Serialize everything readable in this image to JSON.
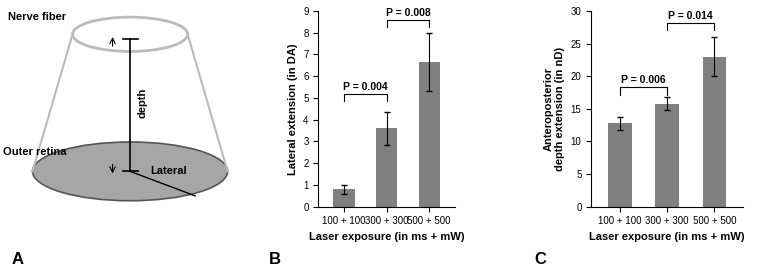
{
  "diagram": {
    "panel_label": "A",
    "top_label": "Nerve fiber",
    "bottom_label": "Outer retina",
    "depth_label": "depth",
    "lateral_label": "Lateral"
  },
  "chart_data": [
    {
      "panel_label": "B",
      "type": "bar",
      "categories": [
        "100 + 100",
        "300 + 300",
        "500 + 500"
      ],
      "values": [
        0.8,
        3.6,
        6.65
      ],
      "errors": [
        0.2,
        0.75,
        1.35
      ],
      "color": "#808080",
      "x_label": "Laser exposure (in ms + mW)",
      "y_label": "Lateral extension (in DA)",
      "ylim": [
        0,
        9
      ],
      "yticks": [
        0,
        1,
        2,
        3,
        4,
        5,
        6,
        7,
        8,
        9
      ],
      "grid": false,
      "annotations": [
        {
          "text": "P = 0.004",
          "between": [
            "100 + 100",
            "300 + 300"
          ],
          "y": 5.2
        },
        {
          "text": "P = 0.008",
          "between": [
            "300 + 300",
            "500 + 500"
          ],
          "y": 8.6
        }
      ]
    },
    {
      "panel_label": "C",
      "type": "bar",
      "categories": [
        "100 + 100",
        "300 + 300",
        "500 + 500"
      ],
      "values": [
        12.8,
        15.8,
        23.0
      ],
      "errors": [
        1.0,
        1.0,
        3.0
      ],
      "color": "#808080",
      "x_label": "Laser exposure (in ms + mW)",
      "y_label": "Anteroposterior\ndepth extension (in nD)",
      "ylim": [
        0,
        30
      ],
      "yticks": [
        0,
        5,
        10,
        15,
        20,
        25,
        30
      ],
      "grid": false,
      "annotations": [
        {
          "text": "P = 0.006",
          "between": [
            "100 + 100",
            "300 + 300"
          ],
          "y": 18.3
        },
        {
          "text": "P = 0.014",
          "between": [
            "300 + 300",
            "500 + 500"
          ],
          "y": 28.2
        }
      ]
    }
  ]
}
